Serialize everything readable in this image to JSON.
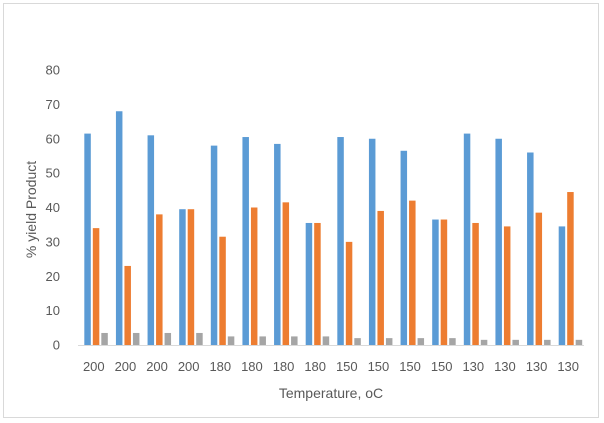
{
  "chart_data": {
    "type": "bar",
    "xlabel": "Temperature, oC",
    "ylabel": "% yield Product",
    "ylim": [
      0,
      80
    ],
    "yticks": [
      0,
      10,
      20,
      30,
      40,
      50,
      60,
      70,
      80
    ],
    "grid": false,
    "legend": "none",
    "categories": [
      "200",
      "200",
      "200",
      "200",
      "180",
      "180",
      "180",
      "180",
      "150",
      "150",
      "150",
      "150",
      "130",
      "130",
      "130",
      "130"
    ],
    "series": [
      {
        "color": "#5b9bd5",
        "values": [
          61.5,
          68,
          61,
          39.5,
          58,
          60.5,
          58.5,
          35.5,
          60.5,
          60,
          56.5,
          36.5,
          61.5,
          60,
          56,
          34.5
        ]
      },
      {
        "color": "#ed7d31",
        "values": [
          34,
          23,
          38,
          39.5,
          31.5,
          40,
          41.5,
          35.5,
          30,
          39,
          42,
          36.5,
          35.5,
          34.5,
          38.5,
          44.5
        ]
      },
      {
        "color": "#a5a5a5",
        "values": [
          3.5,
          3.5,
          3.5,
          3.5,
          2.5,
          2.5,
          2.5,
          2.5,
          2,
          2,
          2,
          2,
          1.5,
          1.5,
          1.5,
          1.5
        ]
      }
    ]
  }
}
